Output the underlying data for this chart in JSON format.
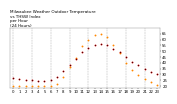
{
  "title": "Milwaukee Weather Outdoor Temperature\nvs THSW Index\nper Hour\n(24 Hours)",
  "hours": [
    0,
    1,
    2,
    3,
    4,
    5,
    6,
    7,
    8,
    9,
    10,
    11,
    12,
    13,
    14,
    15,
    16,
    17,
    18,
    19,
    20,
    21,
    22,
    23
  ],
  "temp": [
    27,
    26,
    25,
    25,
    24,
    24,
    25,
    28,
    33,
    38,
    43,
    49,
    53,
    55,
    56,
    55,
    52,
    49,
    45,
    41,
    38,
    35,
    32,
    30
  ],
  "thsw": [
    20,
    20,
    20,
    20,
    20,
    20,
    20,
    22,
    28,
    36,
    44,
    54,
    60,
    64,
    65,
    62,
    55,
    48,
    40,
    34,
    29,
    26,
    23,
    21
  ],
  "temp_color": "#cc0000",
  "thsw_color": "#ff8800",
  "dot_color_temp": "#000000",
  "bg_color": "#ffffff",
  "grid_color": "#999999",
  "ylim_min": 18,
  "ylim_max": 70,
  "ytick_values": [
    20,
    25,
    30,
    35,
    40,
    45,
    50,
    55,
    60,
    65
  ],
  "ytick_labels": [
    "20",
    "25",
    "30",
    "35",
    "40",
    "45",
    "50",
    "55",
    "60",
    "65"
  ],
  "xtick_values": [
    0,
    1,
    2,
    3,
    4,
    5,
    6,
    7,
    8,
    9,
    10,
    11,
    12,
    13,
    14,
    15,
    16,
    17,
    18,
    19,
    20,
    21,
    22,
    23
  ],
  "xtick_labels": [
    "0",
    "1",
    "2",
    "3",
    "4",
    "5",
    "6",
    "7",
    "8",
    "9",
    "10",
    "11",
    "12",
    "13",
    "14",
    "15",
    "16",
    "17",
    "18",
    "19",
    "20",
    "21",
    "22",
    "23"
  ],
  "grid_lines_x": [
    0,
    3,
    6,
    9,
    12,
    15,
    18,
    21
  ],
  "marker_size_orange": 1.8,
  "marker_size_red": 1.5,
  "title_fontsize": 3.0,
  "tick_fontsize": 2.8
}
